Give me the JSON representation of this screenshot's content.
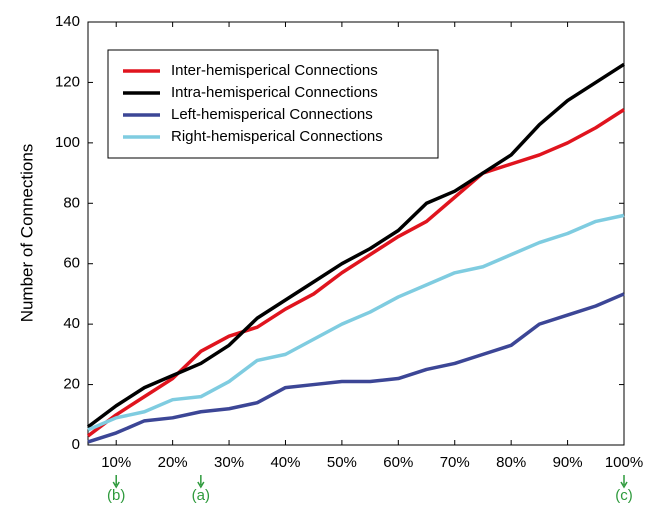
{
  "chart_data": {
    "type": "line",
    "y_label": "Number of Connections",
    "x": [
      5,
      10,
      15,
      20,
      25,
      30,
      35,
      40,
      45,
      50,
      55,
      60,
      65,
      70,
      75,
      80,
      85,
      90,
      95,
      100
    ],
    "series": [
      {
        "name": "Inter-hemisperical Connections",
        "color": "#e0141e",
        "values": [
          3,
          10,
          16,
          22,
          31,
          36,
          39,
          45,
          50,
          57,
          63,
          69,
          74,
          82,
          90,
          93,
          96,
          100,
          105,
          111
        ]
      },
      {
        "name": "Intra-hemisperical Connections",
        "color": "#000000",
        "values": [
          6,
          13,
          19,
          23,
          27,
          33,
          42,
          48,
          54,
          60,
          65,
          71,
          80,
          84,
          90,
          96,
          106,
          114,
          120,
          126
        ]
      },
      {
        "name": "Left-hemisperical Connections",
        "color": "#3c4696",
        "values": [
          1,
          4,
          8,
          9,
          11,
          12,
          14,
          19,
          20,
          21,
          21,
          22,
          25,
          27,
          30,
          33,
          40,
          43,
          46,
          50
        ]
      },
      {
        "name": "Right-hemisperical Connections",
        "color": "#7fcce0",
        "values": [
          5,
          9,
          11,
          15,
          16,
          21,
          28,
          30,
          35,
          40,
          44,
          49,
          53,
          57,
          59,
          63,
          67,
          70,
          74,
          76
        ]
      }
    ],
    "xlim": [
      5,
      100
    ],
    "ylim": [
      0,
      140
    ],
    "xticks": [
      {
        "value": 10,
        "label": "10%"
      },
      {
        "value": 20,
        "label": "20%"
      },
      {
        "value": 30,
        "label": "30%"
      },
      {
        "value": 40,
        "label": "40%"
      },
      {
        "value": 50,
        "label": "50%"
      },
      {
        "value": 60,
        "label": "60%"
      },
      {
        "value": 70,
        "label": "70%"
      },
      {
        "value": 80,
        "label": "80%"
      },
      {
        "value": 90,
        "label": "90%"
      },
      {
        "value": 100,
        "label": "100%"
      }
    ],
    "yticks": [
      0,
      20,
      40,
      60,
      80,
      100,
      120,
      140
    ],
    "annotations": [
      {
        "x": 10,
        "label": "(b)"
      },
      {
        "x": 25,
        "label": "(a)"
      },
      {
        "x": 100,
        "label": "(c)"
      }
    ],
    "legend": "upper-left"
  }
}
